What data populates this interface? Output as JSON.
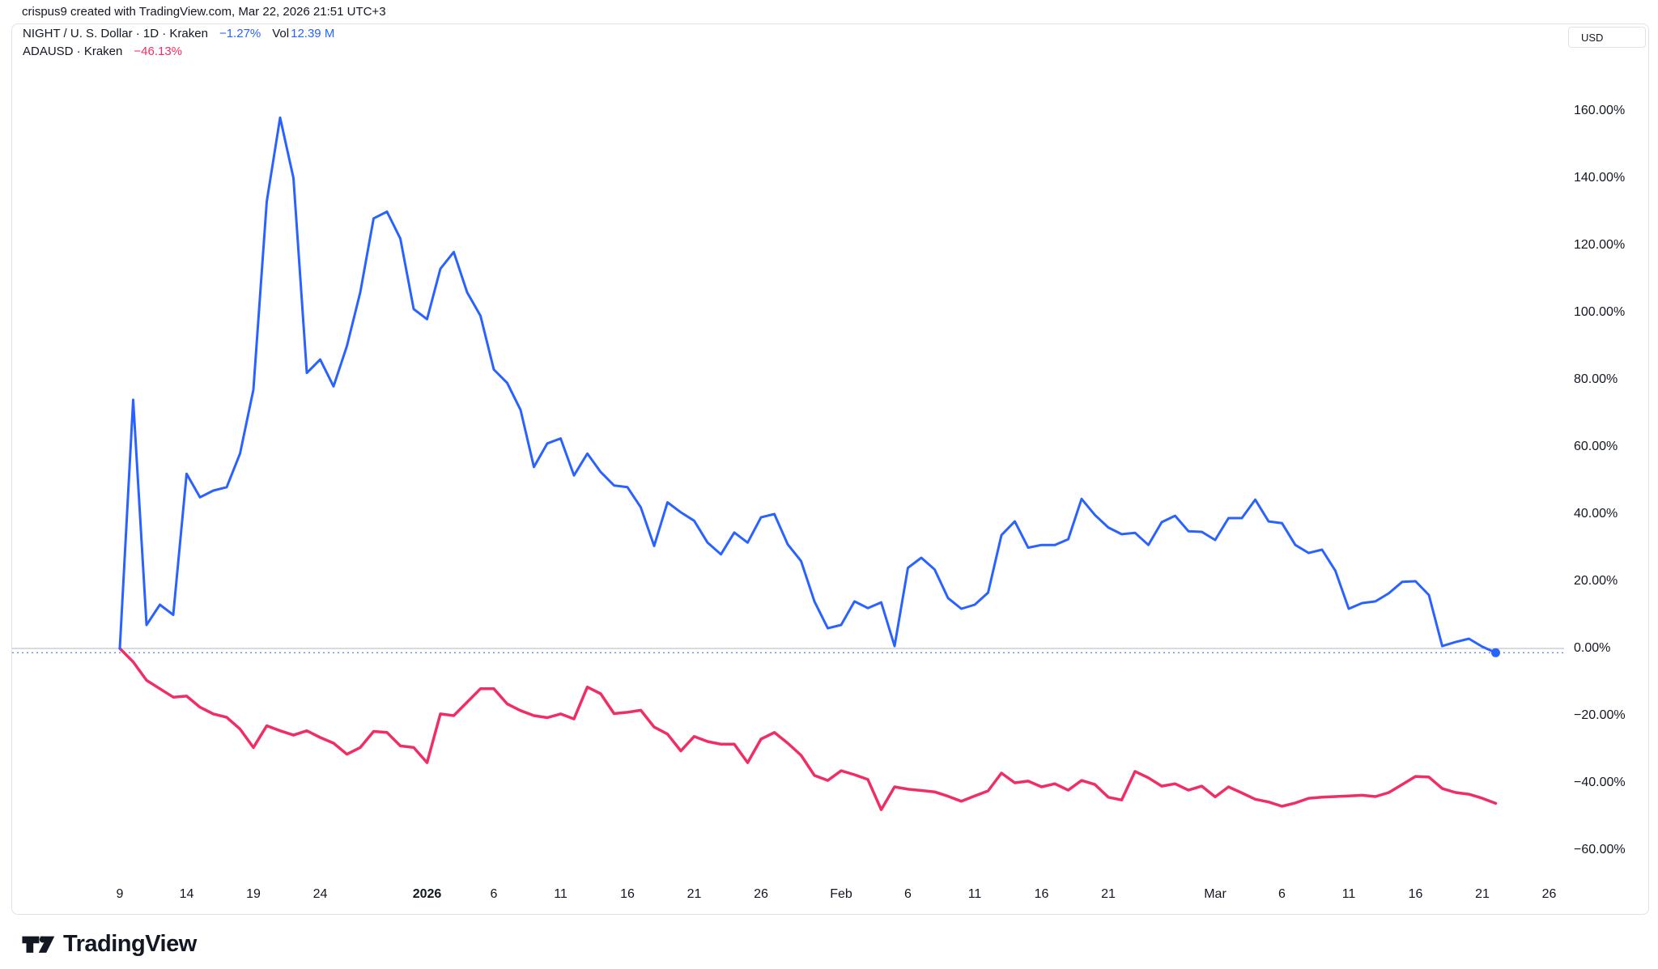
{
  "attribution": "crispus9 created with TradingView.com, Mar 22, 2026 21:51 UTC+3",
  "legend": {
    "line1": {
      "symbol_text": "NIGHT / U. S. Dollar · 1D · Kraken",
      "change": "−1.27%",
      "vol_label": "Vol",
      "vol_value": "12.39 M"
    },
    "line2": {
      "symbol_text": "ADAUSD · Kraken",
      "change": "−46.13%"
    }
  },
  "price_axis": {
    "currency_button": "USD",
    "ticks": [
      {
        "label": "160.00%",
        "value": 160
      },
      {
        "label": "140.00%",
        "value": 140
      },
      {
        "label": "120.00%",
        "value": 120
      },
      {
        "label": "100.00%",
        "value": 100
      },
      {
        "label": "80.00%",
        "value": 80
      },
      {
        "label": "60.00%",
        "value": 60
      },
      {
        "label": "40.00%",
        "value": 40
      },
      {
        "label": "20.00%",
        "value": 20
      },
      {
        "label": "0.00%",
        "value": 0
      },
      {
        "label": "−20.00%",
        "value": -20
      },
      {
        "label": "−40.00%",
        "value": -40
      },
      {
        "label": "−60.00%",
        "value": -60
      }
    ]
  },
  "time_axis": {
    "ticks": [
      {
        "label": "9",
        "day": 0,
        "bold": false
      },
      {
        "label": "14",
        "day": 5,
        "bold": false
      },
      {
        "label": "19",
        "day": 10,
        "bold": false
      },
      {
        "label": "24",
        "day": 15,
        "bold": false
      },
      {
        "label": "2026",
        "day": 23,
        "bold": true
      },
      {
        "label": "6",
        "day": 28,
        "bold": false
      },
      {
        "label": "11",
        "day": 33,
        "bold": false
      },
      {
        "label": "16",
        "day": 38,
        "bold": false
      },
      {
        "label": "21",
        "day": 43,
        "bold": false
      },
      {
        "label": "26",
        "day": 48,
        "bold": false
      },
      {
        "label": "Feb",
        "day": 54,
        "bold": false
      },
      {
        "label": "6",
        "day": 59,
        "bold": false
      },
      {
        "label": "11",
        "day": 64,
        "bold": false
      },
      {
        "label": "16",
        "day": 69,
        "bold": false
      },
      {
        "label": "21",
        "day": 74,
        "bold": false
      },
      {
        "label": "Mar",
        "day": 82,
        "bold": false
      },
      {
        "label": "6",
        "day": 87,
        "bold": false
      },
      {
        "label": "11",
        "day": 92,
        "bold": false
      },
      {
        "label": "16",
        "day": 97,
        "bold": false
      },
      {
        "label": "21",
        "day": 102,
        "bold": false
      },
      {
        "label": "26",
        "day": 107,
        "bold": false
      }
    ]
  },
  "colors": {
    "primary_line": "#2962ff",
    "compare_line": "#f02d64",
    "zero_line": "#b2b5be",
    "last_price_dotted": "#2962ff",
    "border": "#e0e3eb",
    "text": "#131722"
  },
  "logo": {
    "text": "TradingView"
  },
  "chart_data": {
    "type": "line",
    "title": "NIGHT / U.S. Dollar vs ADAUSD — percent change comparison (Kraken, 1D)",
    "x_unit": "day",
    "x_start_date": "2025-12-09",
    "x_end_date": "2026-03-22",
    "ylabel": "% change",
    "ylim": [
      -70,
      175
    ],
    "y_grid": [
      160,
      140,
      120,
      100,
      80,
      60,
      40,
      20,
      0,
      -20,
      -40,
      -60
    ],
    "baseline_value": 0,
    "legend_position": "top-left",
    "last_values": {
      "NIGHT_USD": -1.27,
      "ADAUSD": -46.13
    },
    "volume_last": "12.39 M",
    "series": [
      {
        "name": "NIGHT / U. S. Dollar · Kraken",
        "color": "#2962ff",
        "values": [
          0,
          74,
          7,
          13,
          10,
          52,
          45,
          47,
          48,
          58,
          77,
          133,
          158,
          140,
          82,
          86,
          78,
          90,
          106,
          128,
          130,
          122,
          101,
          98,
          113,
          118,
          106,
          99,
          83,
          79,
          71,
          54,
          61,
          62.5,
          51.5,
          58,
          52.5,
          48.5,
          48,
          42,
          30.5,
          43.5,
          40.5,
          38,
          31.5,
          28,
          34.5,
          31.5,
          39,
          40,
          31,
          26,
          14,
          6,
          7,
          14,
          12,
          13.7,
          0.7,
          24,
          27,
          23.5,
          15,
          11.8,
          13,
          16.6,
          33.7,
          37.8,
          30,
          30.8,
          30.8,
          32.5,
          44.5,
          39.7,
          36,
          34,
          34.4,
          30.8,
          37.6,
          39.5,
          34.9,
          34.7,
          32.3,
          38.8,
          38.8,
          44.3,
          37.8,
          37.3,
          30.8,
          28.4,
          29.4,
          23.1,
          11.8,
          13.5,
          14,
          16.4,
          19.8,
          20,
          15.9,
          0.7,
          1.9,
          2.9,
          0.5,
          -1.27
        ]
      },
      {
        "name": "ADAUSD · Kraken",
        "color": "#f02d64",
        "values": [
          0,
          -4,
          -9.5,
          -12,
          -14.5,
          -14.2,
          -17.5,
          -19.5,
          -20.5,
          -24,
          -29.5,
          -23,
          -24.5,
          -25.8,
          -24.5,
          -26.5,
          -28.2,
          -31.5,
          -29.5,
          -24.7,
          -25,
          -29,
          -29.5,
          -34,
          -19.5,
          -20,
          -16,
          -12,
          -12,
          -16.5,
          -18.5,
          -20,
          -20.6,
          -19.5,
          -21,
          -11.5,
          -13.5,
          -19.4,
          -19,
          -18.4,
          -23.4,
          -25.5,
          -30.5,
          -26.2,
          -27.7,
          -28.5,
          -28.5,
          -34,
          -27,
          -25,
          -28.2,
          -31.8,
          -37.8,
          -39.3,
          -36.4,
          -37.6,
          -39,
          -48,
          -41.2,
          -41.9,
          -42.3,
          -42.7,
          -44,
          -45.5,
          -43.9,
          -42.4,
          -37.1,
          -40,
          -39.5,
          -41.2,
          -40.3,
          -42.2,
          -39.3,
          -40.5,
          -44.3,
          -45.1,
          -36.6,
          -38.5,
          -41,
          -40.3,
          -42.2,
          -41,
          -44.2,
          -41.2,
          -43,
          -44.9,
          -45.7,
          -47,
          -46,
          -44.6,
          -44.3,
          -44.1,
          -43.9,
          -43.7,
          -44.1,
          -42.9,
          -40.5,
          -38.1,
          -38.3,
          -41.7,
          -42.9,
          -43.4,
          -44.6,
          -46.13
        ]
      }
    ]
  }
}
